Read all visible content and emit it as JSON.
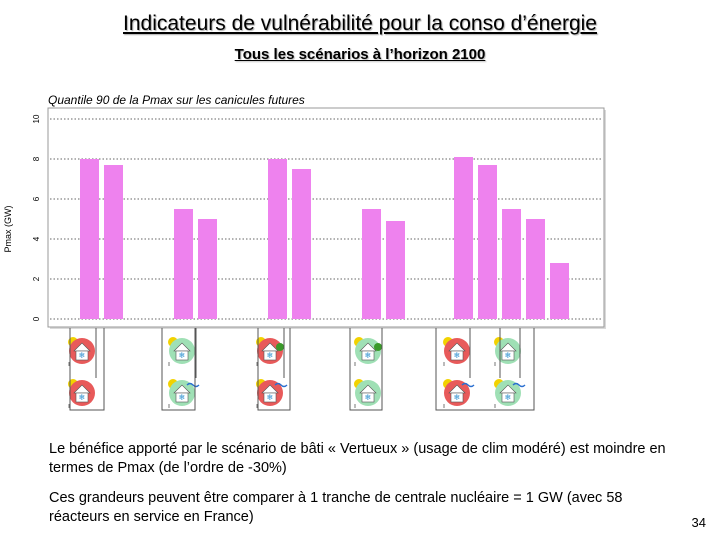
{
  "header": {
    "title": "Indicateurs de vulnérabilité pour la conso d’énergie",
    "subtitle": "Tous les scénarios à l’horizon 2100"
  },
  "chart_data": {
    "type": "bar",
    "title": "Quantile 90 de la Pmax sur les canicules futures",
    "ylabel": "Pmax (GW)",
    "xlabel": "",
    "ylim": [
      0,
      10
    ],
    "yticks": [
      "0",
      "2",
      "4",
      "6",
      "8",
      "10"
    ],
    "grid": true,
    "groups": [
      {
        "values": [
          8.0,
          7.7
        ]
      },
      {
        "values": [
          5.5,
          5.0
        ]
      },
      {
        "values": [
          8.0,
          7.5
        ]
      },
      {
        "values": [
          5.5,
          4.9
        ]
      },
      {
        "values": [
          8.1,
          7.7,
          5.5,
          5.0,
          2.8
        ]
      }
    ],
    "bar_color": "#ee82ee"
  },
  "scenario_icons": {
    "top_row": [
      "red-house",
      "green-house",
      "red-house-plant",
      "green-house-plant",
      "red-house",
      "green-house"
    ],
    "bottom_row": [
      "red-house",
      "green-house-wind",
      "red-house-wind",
      "green-house",
      "red-house-wind",
      "green-house-wind"
    ],
    "colors": {
      "red": "#e85a5a",
      "green": "#9fe0b5",
      "sun": "#f2d200"
    }
  },
  "body": {
    "paragraph1": "Le bénéfice apporté par le scénario de bâti « Vertueux » (usage de clim modéré) est moindre en termes de Pmax (de l’ordre de -30%)",
    "paragraph2": "Ces grandeurs peuvent être comparer à 1 tranche de centrale nucléaire = 1 GW (avec 58 réacteurs en service en France)"
  },
  "footer": {
    "page_number": "34"
  }
}
